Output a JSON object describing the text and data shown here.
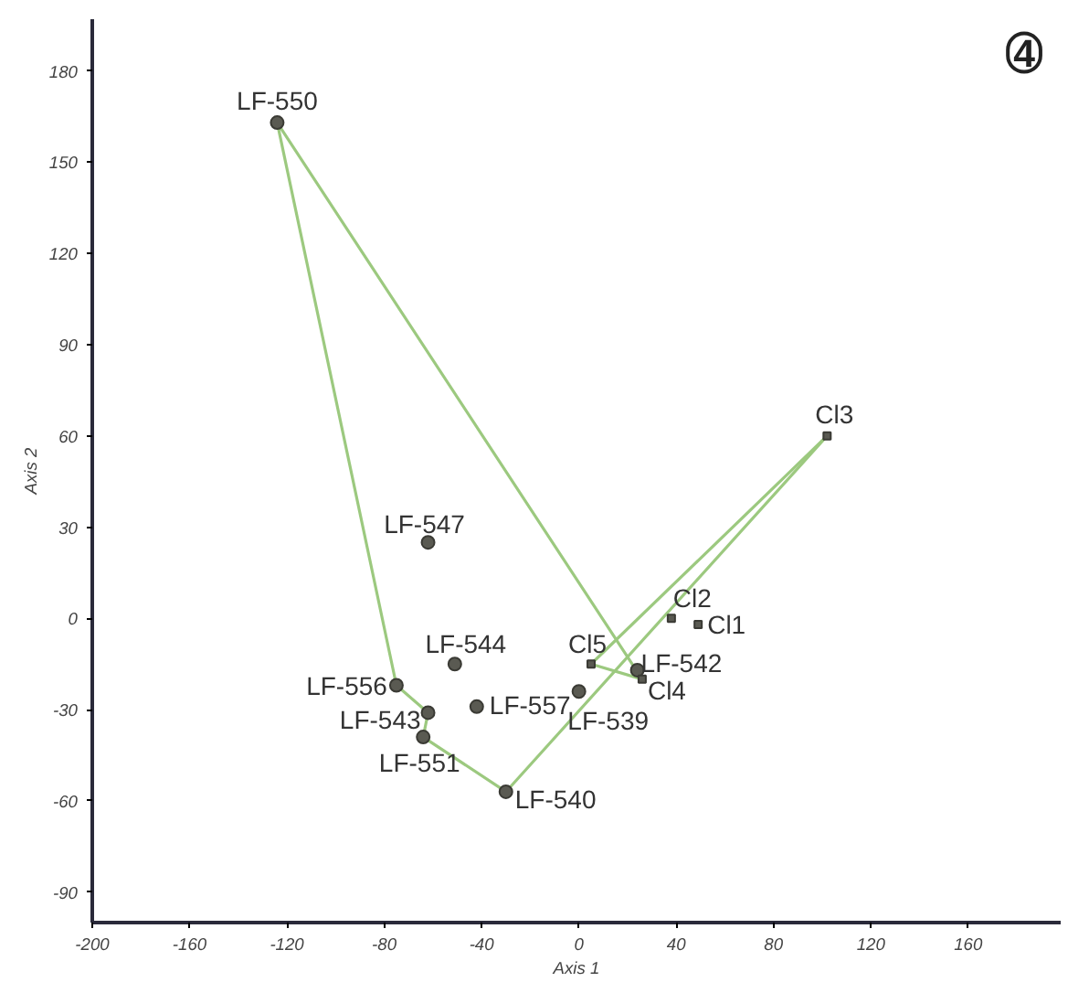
{
  "chart_data": {
    "type": "scatter",
    "xlabel": "Axis 1",
    "ylabel": "Axis 2",
    "xlim": [
      -200,
      198
    ],
    "ylim": [
      -100,
      197
    ],
    "xticks": [
      -200,
      -160,
      -120,
      -80,
      -40,
      0,
      40,
      80,
      120,
      160
    ],
    "yticks": [
      -90,
      -60,
      -30,
      0,
      30,
      60,
      90,
      120,
      150,
      180
    ],
    "grid": false,
    "series": [
      {
        "type": "line",
        "color": "#9cc97f",
        "marker": "none",
        "line_style": "solid",
        "x": [
          -124,
          -75,
          -62,
          -64,
          -30,
          102
        ],
        "values": [
          163,
          -22,
          -31,
          -39,
          -57,
          60
        ]
      },
      {
        "type": "line",
        "color": "#9cc97f",
        "marker": "none",
        "line_style": "solid",
        "x": [
          102,
          5,
          26,
          -124
        ],
        "values": [
          60,
          -15,
          -20,
          163
        ]
      },
      {
        "color": "#5a5a52",
        "marker": "circle",
        "x": [
          -124,
          -62,
          -51,
          -75,
          -62,
          -42,
          -64,
          -30,
          0,
          24
        ],
        "values": [
          163,
          25,
          -15,
          -22,
          -31,
          -29,
          -39,
          -57,
          -24,
          -17
        ]
      },
      {
        "color": "#5a5a52",
        "marker": "square",
        "x": [
          102,
          38,
          49,
          5,
          26
        ],
        "values": [
          60,
          0,
          -2,
          -15,
          -20
        ]
      }
    ],
    "annotations": [
      {
        "text": "LF-550",
        "x": -124,
        "y": 163
      },
      {
        "text": "LF-547",
        "x": -62,
        "y": 25
      },
      {
        "text": "LF-544",
        "x": -51,
        "y": -15
      },
      {
        "text": "LF-556",
        "x": -75,
        "y": -22
      },
      {
        "text": "LF-543",
        "x": -62,
        "y": -31
      },
      {
        "text": "LF-557",
        "x": -42,
        "y": -29
      },
      {
        "text": "LF-551",
        "x": -64,
        "y": -39
      },
      {
        "text": "LF-540",
        "x": -30,
        "y": -57
      },
      {
        "text": "LF-539",
        "x": 0,
        "y": -24
      },
      {
        "text": "LF-542",
        "x": 24,
        "y": -17
      },
      {
        "text": "Cl3",
        "x": 102,
        "y": 60
      },
      {
        "text": "Cl2",
        "x": 38,
        "y": 0
      },
      {
        "text": "Cl1",
        "x": 49,
        "y": -2
      },
      {
        "text": "Cl5",
        "x": 5,
        "y": -15
      },
      {
        "text": "Cl4",
        "x": 26,
        "y": -20
      },
      "4"
    ]
  }
}
